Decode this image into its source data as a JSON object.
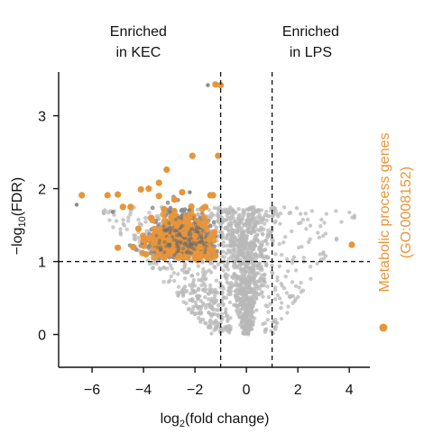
{
  "chart_data": {
    "type": "scatter",
    "title": "",
    "xlabel": "log2(fold change)",
    "xlabel_parts": {
      "pre": "log",
      "sub": "2",
      "post": "(fold change)"
    },
    "ylabel": "−log10(FDR)",
    "ylabel_parts": {
      "pre": "−log",
      "sub": "10",
      "post": "(FDR)"
    },
    "xlim": [
      -7.3,
      4.8
    ],
    "ylim": [
      -0.45,
      3.6
    ],
    "xticks": [
      -6,
      -4,
      -2,
      0,
      2,
      4
    ],
    "xtick_labels": [
      "−6",
      "−4",
      "−2",
      "0",
      "2",
      "4"
    ],
    "yticks": [
      0,
      1,
      2,
      3
    ],
    "ytick_labels": [
      "0",
      "1",
      "2",
      "3"
    ],
    "thresholds": {
      "vertical": [
        -1,
        1
      ],
      "horizontal": [
        1
      ]
    },
    "annotations": [
      {
        "name": "enriched-kec",
        "lines": [
          "Enriched",
          "in KEC"
        ],
        "x": -4.2
      },
      {
        "name": "enriched-lps",
        "lines": [
          "Enriched",
          "in LPS"
        ],
        "x": 2.5
      }
    ],
    "legend": {
      "placement": "right",
      "lines": [
        "Metabolic process genes",
        "(GO:0008152)"
      ]
    },
    "colors": {
      "background_genes": "#b8b8b8",
      "significant_genes": "#8c8c8c",
      "metabolic_genes": "#e8953a",
      "axis": "#111111"
    },
    "series": [
      {
        "role": "metabolic",
        "color": "#e8953a",
        "points": [
          [
            -1.0,
            3.42
          ],
          [
            -1.2,
            3.43
          ],
          [
            -1.1,
            2.45
          ],
          [
            -3.1,
            2.26
          ],
          [
            -2.1,
            2.45
          ],
          [
            -6.4,
            1.91
          ],
          [
            -5.4,
            1.91
          ],
          [
            -5.0,
            1.92
          ],
          [
            -4.8,
            1.75
          ],
          [
            -4.5,
            1.75
          ],
          [
            -4.1,
            1.99
          ],
          [
            -3.8,
            2.0
          ],
          [
            -3.4,
            2.08
          ],
          [
            -1.4,
            1.91
          ],
          [
            -1.3,
            1.91
          ],
          [
            -5.0,
            1.19
          ],
          [
            4.1,
            1.23
          ],
          [
            -3.2,
            1.05
          ],
          [
            -2.6,
            1.08
          ],
          [
            -2.3,
            1.06
          ],
          [
            -1.9,
            1.02
          ],
          [
            -1.5,
            1.06
          ],
          [
            -1.2,
            1.08
          ],
          [
            -3.6,
            1.25
          ],
          [
            -3.0,
            1.3
          ],
          [
            -2.4,
            1.38
          ],
          [
            -1.8,
            1.2
          ],
          [
            -1.35,
            1.15
          ],
          [
            -4.2,
            1.45
          ],
          [
            -3.7,
            1.6
          ],
          [
            -3.2,
            1.72
          ],
          [
            -2.8,
            1.85
          ],
          [
            -2.2,
            1.62
          ],
          [
            -1.7,
            1.5
          ],
          [
            -1.25,
            1.4
          ],
          [
            -4.0,
            1.3
          ],
          [
            -2.9,
            1.15
          ],
          [
            -2.0,
            1.35
          ],
          [
            -3.4,
            1.9
          ],
          [
            -2.5,
            1.95
          ],
          [
            -1.6,
            1.75
          ],
          [
            -4.4,
            1.2
          ],
          [
            -3.9,
            1.1
          ],
          [
            -2.7,
            1.5
          ],
          [
            -1.45,
            1.3
          ]
        ]
      }
    ]
  },
  "ui": {
    "legend_marker_color": "#e8953a"
  }
}
